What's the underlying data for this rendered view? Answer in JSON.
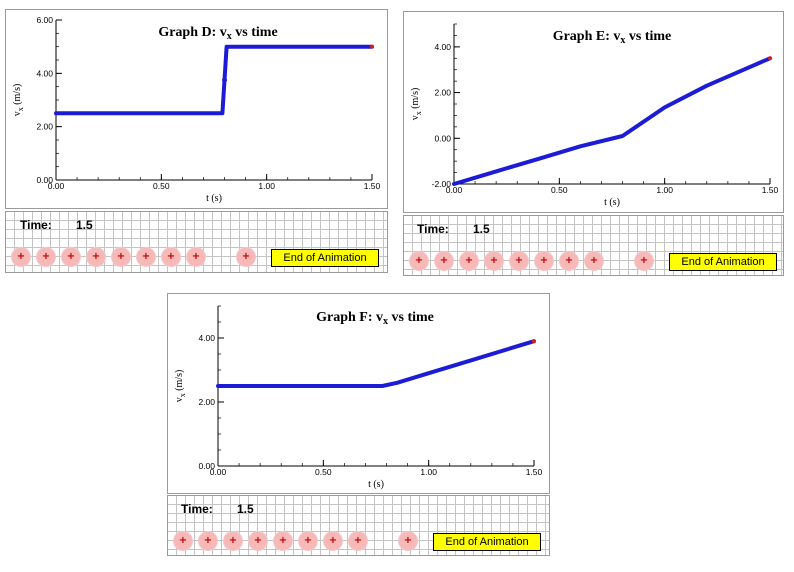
{
  "chart_data": [
    {
      "id": "D",
      "type": "line",
      "title": "Graph D:  vx vs time",
      "title_main": "Graph D:  v",
      "title_sub": "x",
      "title_tail": " vs time",
      "ylabel_main": "v",
      "ylabel_sub": "x",
      "ylabel_tail": " (m/s)",
      "xlabel": "t (s)",
      "xlim": [
        0,
        1.5
      ],
      "ylim": [
        0,
        6
      ],
      "x_ticks": [
        "0.00",
        "0.50",
        "1.00",
        "1.50"
      ],
      "y_ticks": [
        "0.00",
        "2.00",
        "4.00",
        "6.00"
      ],
      "x_tick_values": [
        0,
        0.5,
        1,
        1.5
      ],
      "y_tick_values": [
        0,
        2,
        4,
        6
      ],
      "x_minor_step": 0.1,
      "y_minor_step": 0.5,
      "line_color": "#1c1cd6",
      "end_marker_color": "#d81c1c",
      "points": [
        [
          0,
          2.5
        ],
        [
          0.3,
          2.5
        ],
        [
          0.6,
          2.5
        ],
        [
          0.79,
          2.5
        ],
        [
          0.8,
          3.75
        ],
        [
          0.81,
          5.0
        ],
        [
          1.0,
          5.0
        ],
        [
          1.25,
          5.0
        ],
        [
          1.5,
          5.0
        ]
      ],
      "highlight_points": [
        [
          0.8,
          3.75
        ]
      ]
    },
    {
      "id": "E",
      "type": "line",
      "title": "Graph E:  vx vs time",
      "title_main": "Graph E:  v",
      "title_sub": "x",
      "title_tail": " vs time",
      "ylabel_main": "v",
      "ylabel_sub": "x",
      "ylabel_tail": " (m/s)",
      "xlabel": "t (s)",
      "xlim": [
        0,
        1.5
      ],
      "ylim": [
        -2,
        5
      ],
      "x_ticks": [
        "0.00",
        "0.50",
        "1.00",
        "1.50"
      ],
      "y_ticks": [
        "-2.00",
        "0.00",
        "2.00",
        "4.00"
      ],
      "x_tick_values": [
        0,
        0.5,
        1,
        1.5
      ],
      "y_tick_values": [
        -2,
        0,
        2,
        4
      ],
      "x_minor_step": 0.1,
      "y_minor_step": 0.5,
      "line_color": "#1c1cd6",
      "end_marker_color": "#d81c1c",
      "points": [
        [
          0,
          -2.0
        ],
        [
          0.2,
          -1.45
        ],
        [
          0.4,
          -0.9
        ],
        [
          0.6,
          -0.35
        ],
        [
          0.8,
          0.1
        ],
        [
          1.0,
          1.35
        ],
        [
          1.2,
          2.3
        ],
        [
          1.4,
          3.1
        ],
        [
          1.5,
          3.5
        ]
      ],
      "highlight_points": []
    },
    {
      "id": "F",
      "type": "line",
      "title": "Graph F:  vx vs time",
      "title_main": "Graph F:  v",
      "title_sub": "x",
      "title_tail": " vs time",
      "ylabel_main": "v",
      "ylabel_sub": "x",
      "ylabel_tail": " (m/s)",
      "xlabel": "t (s)",
      "xlim": [
        0,
        1.5
      ],
      "ylim": [
        0,
        5
      ],
      "x_ticks": [
        "0.00",
        "0.50",
        "1.00",
        "1.50"
      ],
      "y_ticks": [
        "0.00",
        "2.00",
        "4.00"
      ],
      "x_tick_values": [
        0,
        0.5,
        1,
        1.5
      ],
      "y_tick_values": [
        0,
        2,
        4
      ],
      "x_minor_step": 0.1,
      "y_minor_step": 0.5,
      "line_color": "#1c1cd6",
      "end_marker_color": "#d81c1c",
      "points": [
        [
          0,
          2.5
        ],
        [
          0.4,
          2.5
        ],
        [
          0.78,
          2.5
        ],
        [
          0.85,
          2.6
        ],
        [
          1.0,
          2.9
        ],
        [
          1.2,
          3.3
        ],
        [
          1.4,
          3.7
        ],
        [
          1.5,
          3.9
        ]
      ],
      "highlight_points": []
    }
  ],
  "animations": [
    {
      "time_label": "Time:",
      "time_value": "1.5",
      "button_label": "End of Animation",
      "ball_color": "#f7b8b8",
      "button_color": "#ffff00"
    },
    {
      "time_label": "Time:",
      "time_value": "1.5",
      "button_label": "End of Animation",
      "ball_color": "#f7b8b8",
      "button_color": "#ffff00"
    },
    {
      "time_label": "Time:",
      "time_value": "1.5",
      "button_label": "End of Animation",
      "ball_color": "#f7b8b8",
      "button_color": "#ffff00"
    }
  ]
}
